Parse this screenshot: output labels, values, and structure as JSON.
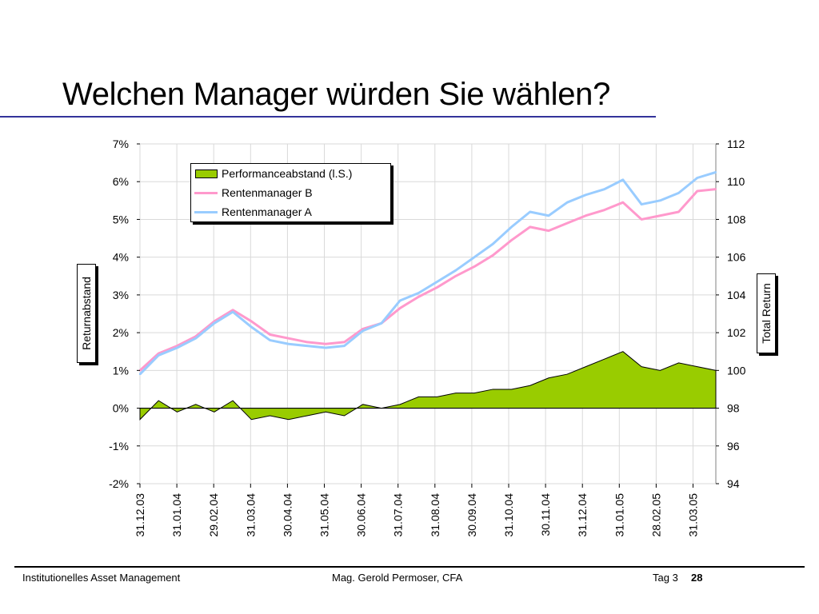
{
  "slide": {
    "title": "Welchen Manager würden Sie wählen?"
  },
  "footer": {
    "left": "Institutionelles Asset Management",
    "center": "Mag. Gerold Permoser, CFA",
    "day": "Tag 3",
    "page": "28"
  },
  "colors": {
    "title_rule": "#33339a",
    "area": "#99cc00",
    "manager_a": "#99ccff",
    "manager_b": "#ff99cc",
    "grid": "#d9d9d9"
  },
  "chart_data": {
    "type": "line",
    "ylabel": "Returnabstand",
    "y2label": "Total Return",
    "ylim": [
      -2,
      7
    ],
    "y2lim": [
      94,
      112
    ],
    "grid": true,
    "legend_position": "top-left",
    "ticks": {
      "y": [
        "7%",
        "6%",
        "5%",
        "4%",
        "3%",
        "2%",
        "1%",
        "0%",
        "-1%",
        "-2%"
      ],
      "y2": [
        "112",
        "110",
        "108",
        "106",
        "104",
        "102",
        "100",
        "98",
        "96",
        "94"
      ],
      "x": [
        "31.12.03",
        "31.01.04",
        "29.02.04",
        "31.03.04",
        "30.04.04",
        "31.05.04",
        "30.06.04",
        "31.07.04",
        "31.08.04",
        "30.09.04",
        "31.10.04",
        "30.11.04",
        "31.12.04",
        "31.01.05",
        "28.02.05",
        "31.03.05"
      ]
    },
    "x": [
      "31.12.03",
      "15.01.04",
      "31.01.04",
      "15.02.04",
      "29.02.04",
      "15.03.04",
      "31.03.04",
      "15.04.04",
      "30.04.04",
      "15.05.04",
      "31.05.04",
      "15.06.04",
      "30.06.04",
      "15.07.04",
      "31.07.04",
      "15.08.04",
      "31.08.04",
      "15.09.04",
      "30.09.04",
      "15.10.04",
      "31.10.04",
      "15.11.04",
      "30.11.04",
      "15.12.04",
      "31.12.04",
      "15.01.05",
      "31.01.05",
      "15.02.05",
      "28.02.05",
      "15.03.05",
      "31.03.05",
      "15.04.05"
    ],
    "series": [
      {
        "name": "Performanceabstand (l.S.)",
        "axis": "left",
        "type": "area",
        "values": [
          -0.3,
          0.2,
          -0.1,
          0.1,
          -0.1,
          0.2,
          -0.3,
          -0.2,
          -0.3,
          -0.2,
          -0.1,
          -0.2,
          0.1,
          0.0,
          0.1,
          0.3,
          0.3,
          0.4,
          0.4,
          0.5,
          0.5,
          0.6,
          0.8,
          0.9,
          1.1,
          1.3,
          1.5,
          1.1,
          1.0,
          1.2,
          1.1,
          1.0
        ]
      },
      {
        "name": "Rentenmanager B",
        "axis": "right",
        "values": [
          100.0,
          100.9,
          101.3,
          101.8,
          102.6,
          103.2,
          102.6,
          101.9,
          101.7,
          101.5,
          101.4,
          101.5,
          102.2,
          102.5,
          103.3,
          103.9,
          104.4,
          105.0,
          105.5,
          106.1,
          106.9,
          107.6,
          107.4,
          107.8,
          108.2,
          108.5,
          108.9,
          108.0,
          108.2,
          108.4,
          109.5,
          109.6
        ]
      },
      {
        "name": "Rentenmanager A",
        "axis": "right",
        "values": [
          99.8,
          100.8,
          101.2,
          101.7,
          102.5,
          103.1,
          102.3,
          101.6,
          101.4,
          101.3,
          101.2,
          101.3,
          102.1,
          102.5,
          103.7,
          104.1,
          104.7,
          105.3,
          106.0,
          106.7,
          107.6,
          108.4,
          108.2,
          108.9,
          109.3,
          109.6,
          110.1,
          108.8,
          109.0,
          109.4,
          110.2,
          110.5
        ]
      }
    ]
  }
}
